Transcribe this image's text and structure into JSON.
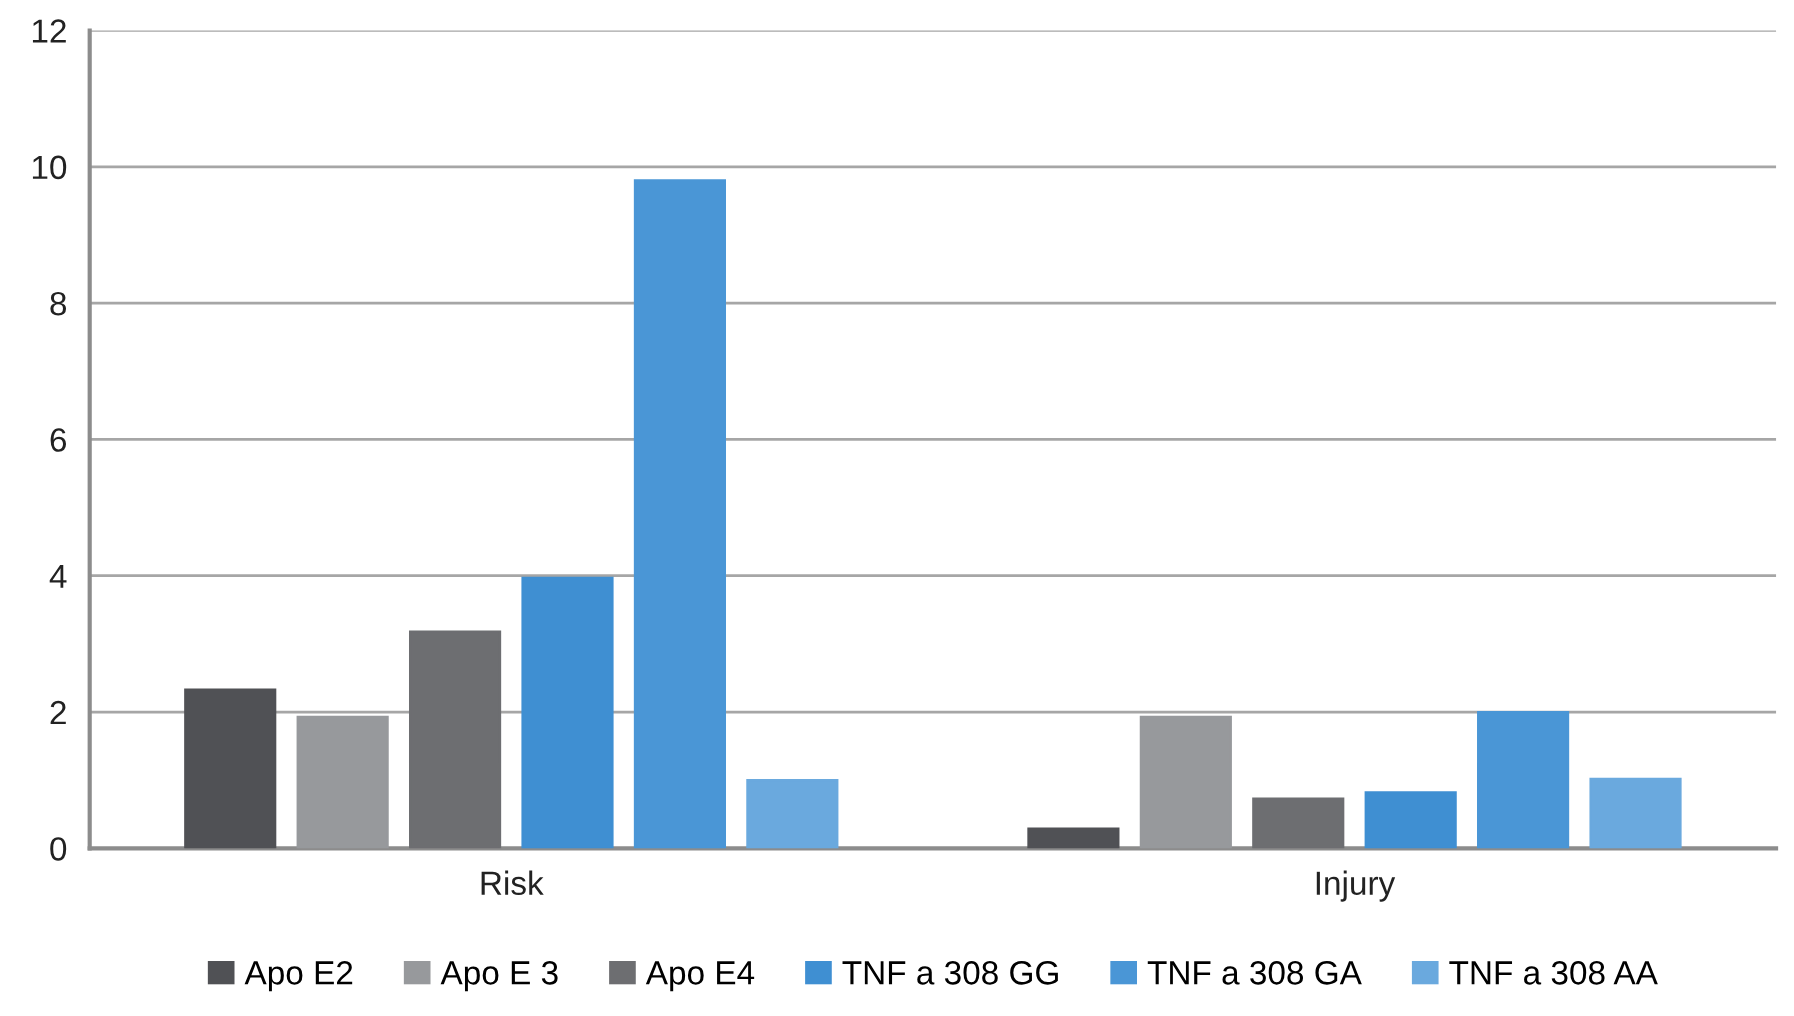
{
  "chart_data": {
    "type": "bar",
    "categories": [
      "Risk",
      "Injury"
    ],
    "series": [
      {
        "name": "Apo E2",
        "color": "#505155",
        "values": [
          2.33,
          0.29
        ]
      },
      {
        "name": "Apo E 3",
        "color": "#97999c",
        "values": [
          1.93,
          1.93
        ]
      },
      {
        "name": "Apo E4",
        "color": "#6d6e71",
        "values": [
          3.18,
          0.73
        ]
      },
      {
        "name": "TNF a 308 GG",
        "color": "#3f8fd2",
        "values": [
          3.97,
          0.82
        ]
      },
      {
        "name": "TNF a 308 GA",
        "color": "#4a96d6",
        "values": [
          9.8,
          2.0
        ]
      },
      {
        "name": "TNF a 308 AA",
        "color": "#6aa9de",
        "values": [
          1.0,
          1.02
        ]
      }
    ],
    "ylim": [
      0,
      12
    ],
    "yticks": [
      0,
      2,
      4,
      6,
      8,
      10,
      12
    ],
    "grid": "y",
    "legend": "bottom"
  }
}
